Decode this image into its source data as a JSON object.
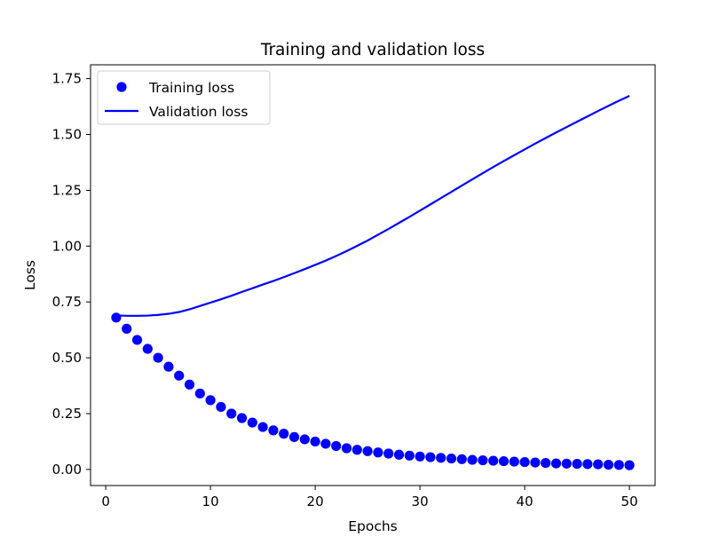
{
  "chart_data": {
    "type": "line",
    "title": "Training and validation loss",
    "xlabel": "Epochs",
    "ylabel": "Loss",
    "xlim": [
      -1.45,
      52.45
    ],
    "ylim": [
      -0.072,
      1.812
    ],
    "xticks": [
      0,
      10,
      20,
      30,
      40,
      50
    ],
    "xtick_labels": [
      "0",
      "10",
      "20",
      "30",
      "40",
      "50"
    ],
    "yticks": [
      0.0,
      0.25,
      0.5,
      0.75,
      1.0,
      1.25,
      1.5,
      1.75
    ],
    "ytick_labels": [
      "0.00",
      "0.25",
      "0.50",
      "0.75",
      "1.00",
      "1.25",
      "1.50",
      "1.75"
    ],
    "grid": false,
    "legend_position": "top-left",
    "series_color": "#0000ff",
    "x": [
      1,
      2,
      3,
      4,
      5,
      6,
      7,
      8,
      9,
      10,
      11,
      12,
      13,
      14,
      15,
      16,
      17,
      18,
      19,
      20,
      21,
      22,
      23,
      24,
      25,
      26,
      27,
      28,
      29,
      30,
      31,
      32,
      33,
      34,
      35,
      36,
      37,
      38,
      39,
      40,
      41,
      42,
      43,
      44,
      45,
      46,
      47,
      48,
      49,
      50
    ],
    "series": [
      {
        "name": "Training loss",
        "style": "markers",
        "values": [
          0.68,
          0.63,
          0.58,
          0.54,
          0.5,
          0.46,
          0.42,
          0.38,
          0.34,
          0.31,
          0.28,
          0.25,
          0.23,
          0.21,
          0.19,
          0.175,
          0.16,
          0.145,
          0.135,
          0.125,
          0.115,
          0.105,
          0.095,
          0.088,
          0.082,
          0.076,
          0.071,
          0.066,
          0.062,
          0.058,
          0.055,
          0.052,
          0.049,
          0.046,
          0.043,
          0.041,
          0.039,
          0.037,
          0.035,
          0.033,
          0.031,
          0.029,
          0.027,
          0.026,
          0.025,
          0.024,
          0.023,
          0.021,
          0.02,
          0.019
        ]
      },
      {
        "name": "Validation loss",
        "style": "line",
        "values": [
          0.69,
          0.688,
          0.688,
          0.689,
          0.692,
          0.697,
          0.705,
          0.717,
          0.732,
          0.747,
          0.762,
          0.778,
          0.795,
          0.811,
          0.828,
          0.844,
          0.861,
          0.879,
          0.897,
          0.916,
          0.935,
          0.956,
          0.978,
          1.001,
          1.025,
          1.051,
          1.077,
          1.104,
          1.131,
          1.159,
          1.187,
          1.215,
          1.243,
          1.271,
          1.299,
          1.327,
          1.354,
          1.381,
          1.407,
          1.433,
          1.459,
          1.484,
          1.509,
          1.533,
          1.557,
          1.581,
          1.605,
          1.628,
          1.651,
          1.673
        ]
      }
    ]
  }
}
